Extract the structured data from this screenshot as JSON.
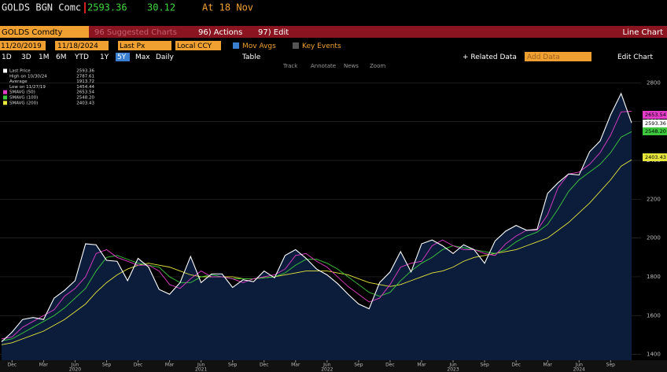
{
  "header": {
    "ticker": "GOLDS BGN Comc",
    "price": "2593.36",
    "change": "30.12",
    "time": "At 18 Nov"
  },
  "menu": {
    "security": "GOLDS Comdty",
    "suggested": "96 Suggested Charts",
    "actions": "96) Actions",
    "edit": "97) Edit",
    "view": "Line Chart"
  },
  "controls": {
    "start": "11/20/2019",
    "end": "11/18/2024",
    "field": "Last Px",
    "currency": "Local CCY",
    "mov_avgs": "Mov Avgs",
    "key_events": "Key Events"
  },
  "periods": [
    "1D",
    "3D",
    "1M",
    "6M",
    "YTD",
    "1Y",
    "5Y",
    "Max",
    "Daily"
  ],
  "actions": {
    "table": "Table",
    "related": "+ Related Data",
    "add": "Add Data",
    "edit_chart": "Edit Chart"
  },
  "chart_tools": [
    "Track",
    "Annotate",
    "News",
    "Zoom"
  ],
  "chart_data": {
    "type": "line",
    "grid": true,
    "fill_color": "#0b1d3a",
    "x": [
      "2019-11",
      "2019-12",
      "2020-01",
      "2020-02",
      "2020-03",
      "2020-04",
      "2020-05",
      "2020-06",
      "2020-07",
      "2020-08",
      "2020-09",
      "2020-10",
      "2020-11",
      "2020-12",
      "2021-01",
      "2021-02",
      "2021-03",
      "2021-04",
      "2021-05",
      "2021-06",
      "2021-07",
      "2021-08",
      "2021-09",
      "2021-10",
      "2021-11",
      "2021-12",
      "2022-01",
      "2022-02",
      "2022-03",
      "2022-04",
      "2022-05",
      "2022-06",
      "2022-07",
      "2022-08",
      "2022-09",
      "2022-10",
      "2022-11",
      "2022-12",
      "2023-01",
      "2023-02",
      "2023-03",
      "2023-04",
      "2023-05",
      "2023-06",
      "2023-07",
      "2023-08",
      "2023-09",
      "2023-10",
      "2023-11",
      "2023-12",
      "2024-01",
      "2024-02",
      "2024-03",
      "2024-04",
      "2024-05",
      "2024-06",
      "2024-07",
      "2024-08",
      "2024-09",
      "2024-10",
      "2024-11"
    ],
    "series": [
      {
        "name": "Last Price",
        "color": "#ffffff",
        "last_label": "2593.36",
        "values": [
          1465,
          1515,
          1580,
          1590,
          1580,
          1690,
          1730,
          1780,
          1970,
          1965,
          1885,
          1880,
          1780,
          1895,
          1850,
          1735,
          1710,
          1770,
          1905,
          1770,
          1815,
          1815,
          1745,
          1785,
          1775,
          1830,
          1795,
          1910,
          1940,
          1895,
          1840,
          1810,
          1765,
          1710,
          1660,
          1635,
          1770,
          1825,
          1930,
          1825,
          1970,
          1990,
          1960,
          1920,
          1965,
          1940,
          1870,
          1985,
          2035,
          2065,
          2040,
          2045,
          2230,
          2285,
          2330,
          2325,
          2445,
          2500,
          2635,
          2745,
          2593.36
        ]
      },
      {
        "name": "SMAVG (50)",
        "color": "#e23cc8",
        "last_label": "2653.54",
        "values": [
          1480,
          1490,
          1540,
          1570,
          1600,
          1630,
          1700,
          1740,
          1800,
          1920,
          1940,
          1900,
          1880,
          1860,
          1860,
          1830,
          1760,
          1740,
          1790,
          1830,
          1800,
          1800,
          1790,
          1770,
          1790,
          1800,
          1810,
          1840,
          1910,
          1920,
          1880,
          1850,
          1800,
          1750,
          1710,
          1670,
          1690,
          1760,
          1850,
          1870,
          1880,
          1960,
          1990,
          1960,
          1940,
          1940,
          1920,
          1910,
          1970,
          2010,
          2040,
          2040,
          2120,
          2260,
          2330,
          2340,
          2380,
          2440,
          2530,
          2650,
          2653.54
        ]
      },
      {
        "name": "SMAVG (100)",
        "color": "#3ec83e",
        "last_label": "2548.20",
        "values": [
          1470,
          1480,
          1510,
          1540,
          1570,
          1600,
          1640,
          1690,
          1740,
          1830,
          1900,
          1910,
          1890,
          1870,
          1860,
          1850,
          1800,
          1770,
          1770,
          1800,
          1810,
          1800,
          1790,
          1790,
          1790,
          1795,
          1800,
          1820,
          1860,
          1890,
          1890,
          1870,
          1840,
          1800,
          1760,
          1720,
          1700,
          1720,
          1780,
          1830,
          1870,
          1900,
          1940,
          1960,
          1950,
          1940,
          1930,
          1920,
          1940,
          1980,
          2010,
          2030,
          2070,
          2150,
          2240,
          2300,
          2340,
          2380,
          2440,
          2520,
          2548.2
        ]
      },
      {
        "name": "SMAVG (200)",
        "color": "#e6e63c",
        "last_label": "2403.43",
        "values": [
          1450,
          1460,
          1480,
          1500,
          1520,
          1550,
          1580,
          1620,
          1660,
          1720,
          1770,
          1810,
          1840,
          1860,
          1870,
          1860,
          1850,
          1830,
          1810,
          1800,
          1800,
          1800,
          1800,
          1790,
          1790,
          1795,
          1800,
          1810,
          1820,
          1830,
          1830,
          1830,
          1820,
          1810,
          1790,
          1770,
          1760,
          1750,
          1760,
          1780,
          1800,
          1820,
          1830,
          1850,
          1880,
          1900,
          1910,
          1920,
          1930,
          1940,
          1960,
          1980,
          2000,
          2040,
          2080,
          2130,
          2180,
          2240,
          2300,
          2370,
          2403.43
        ]
      }
    ],
    "stats": [
      {
        "label": "High on 10/30/24",
        "value": "2787.61"
      },
      {
        "label": "Average",
        "value": "1913.72"
      },
      {
        "label": "Low on 11/27/19",
        "value": "1454.44"
      }
    ],
    "ylim": [
      1370,
      2850
    ],
    "yticks": [
      1400,
      1600,
      1800,
      2000,
      2200,
      2400,
      2600,
      2800
    ],
    "xticks": [
      {
        "value": "2019-12",
        "label": "Dec"
      },
      {
        "value": "2020-03",
        "label": "Mar"
      },
      {
        "value": "2020-06",
        "label": "Jun"
      },
      {
        "value": "2020-09",
        "label": "Sep"
      },
      {
        "value": "2020-12",
        "label": "Dec"
      },
      {
        "value": "2021-03",
        "label": "Mar"
      },
      {
        "value": "2021-06",
        "label": "Jun"
      },
      {
        "value": "2021-09",
        "label": "Sep"
      },
      {
        "value": "2021-12",
        "label": "Dec"
      },
      {
        "value": "2022-03",
        "label": "Mar"
      },
      {
        "value": "2022-06",
        "label": "Jun"
      },
      {
        "value": "2022-09",
        "label": "Sep"
      },
      {
        "value": "2022-12",
        "label": "Dec"
      },
      {
        "value": "2023-03",
        "label": "Mar"
      },
      {
        "value": "2023-06",
        "label": "Jun"
      },
      {
        "value": "2023-09",
        "label": "Sep"
      },
      {
        "value": "2023-12",
        "label": "Dec"
      },
      {
        "value": "2024-03",
        "label": "Mar"
      },
      {
        "value": "2024-06",
        "label": "Jun"
      },
      {
        "value": "2024-09",
        "label": "Sep"
      }
    ],
    "xyears": [
      {
        "value": "2020-06",
        "label": "2020"
      },
      {
        "value": "2021-06",
        "label": "2021"
      },
      {
        "value": "2022-06",
        "label": "2022"
      },
      {
        "value": "2023-06",
        "label": "2023"
      },
      {
        "value": "2024-06",
        "label": "2024"
      }
    ]
  }
}
